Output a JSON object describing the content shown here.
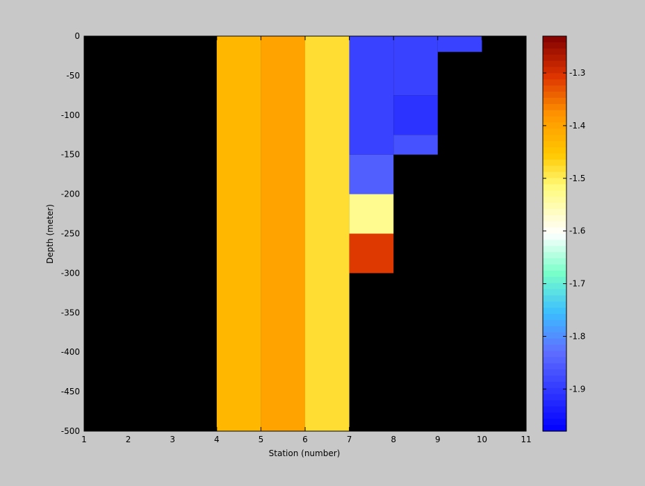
{
  "chart_data": {
    "type": "heatmap",
    "xlabel": "Station (number)",
    "ylabel": "Depth (meter)",
    "xlim": [
      1,
      11
    ],
    "ylim": [
      -500,
      0
    ],
    "xticks": [
      1,
      2,
      3,
      4,
      5,
      6,
      7,
      8,
      9,
      10,
      11
    ],
    "yticks": [
      0,
      -50,
      -100,
      -150,
      -200,
      -250,
      -300,
      -350,
      -400,
      -450,
      -500
    ],
    "background_color": "#000000",
    "cells": [
      {
        "x0": 4,
        "x1": 5,
        "y0": -500,
        "y1": 0,
        "value": -1.43
      },
      {
        "x0": 5,
        "x1": 6,
        "y0": -500,
        "y1": 0,
        "value": -1.4
      },
      {
        "x0": 6,
        "x1": 7,
        "y0": -500,
        "y1": 0,
        "value": -1.48
      },
      {
        "x0": 7,
        "x1": 8,
        "y0": -150,
        "y1": 0,
        "value": -1.89
      },
      {
        "x0": 7,
        "x1": 8,
        "y0": -200,
        "y1": -150,
        "value": -1.85
      },
      {
        "x0": 7,
        "x1": 8,
        "y0": -250,
        "y1": -200,
        "value": -1.53
      },
      {
        "x0": 7,
        "x1": 8,
        "y0": -300,
        "y1": -250,
        "value": -1.31
      },
      {
        "x0": 8,
        "x1": 9,
        "y0": -75,
        "y1": 0,
        "value": -1.89
      },
      {
        "x0": 8,
        "x1": 9,
        "y0": -125,
        "y1": -75,
        "value": -1.91
      },
      {
        "x0": 8,
        "x1": 9,
        "y0": -150,
        "y1": -125,
        "value": -1.87
      },
      {
        "x0": 9,
        "x1": 10,
        "y0": -20,
        "y1": 0,
        "value": -1.89
      }
    ],
    "colorbar": {
      "min": -1.98,
      "max": -1.23,
      "ticks": [
        -1.3,
        -1.4,
        -1.5,
        -1.6,
        -1.7,
        -1.8,
        -1.9
      ],
      "colormap": "jet-white-center"
    }
  }
}
